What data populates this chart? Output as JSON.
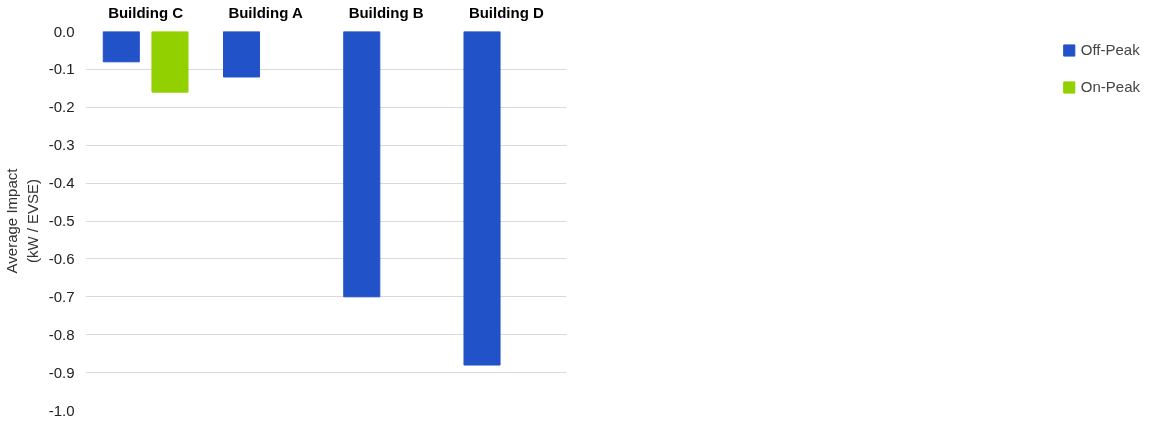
{
  "chart_data": {
    "type": "bar",
    "ylabel": "Average Impact\n(kW / EVSE)",
    "categories": [
      "Building C",
      "Building A",
      "Building B",
      "Building D"
    ],
    "series": [
      {
        "name": "Off-Peak",
        "color": "#2152c8",
        "values": [
          -0.08,
          -0.12,
          -0.7,
          -0.88
        ]
      },
      {
        "name": "On-Peak",
        "color": "#92d000",
        "values": [
          -0.16,
          null,
          null,
          null
        ]
      }
    ],
    "ylim": [
      -1.0,
      0.0
    ],
    "yticks": [
      {
        "value": 0.0,
        "label": "0.0"
      },
      {
        "value": -0.1,
        "label": "-0.1"
      },
      {
        "value": -0.2,
        "label": "-0.2"
      },
      {
        "value": -0.3,
        "label": "-0.3"
      },
      {
        "value": -0.4,
        "label": "-0.4"
      },
      {
        "value": -0.5,
        "label": "-0.5"
      },
      {
        "value": -0.6,
        "label": "-0.6"
      },
      {
        "value": -0.7,
        "label": "-0.7"
      },
      {
        "value": -0.8,
        "label": "-0.8"
      },
      {
        "value": -0.9,
        "label": "-0.9"
      },
      {
        "value": -1.0,
        "label": "-1.0"
      }
    ],
    "grid": "y",
    "legend": "right"
  }
}
